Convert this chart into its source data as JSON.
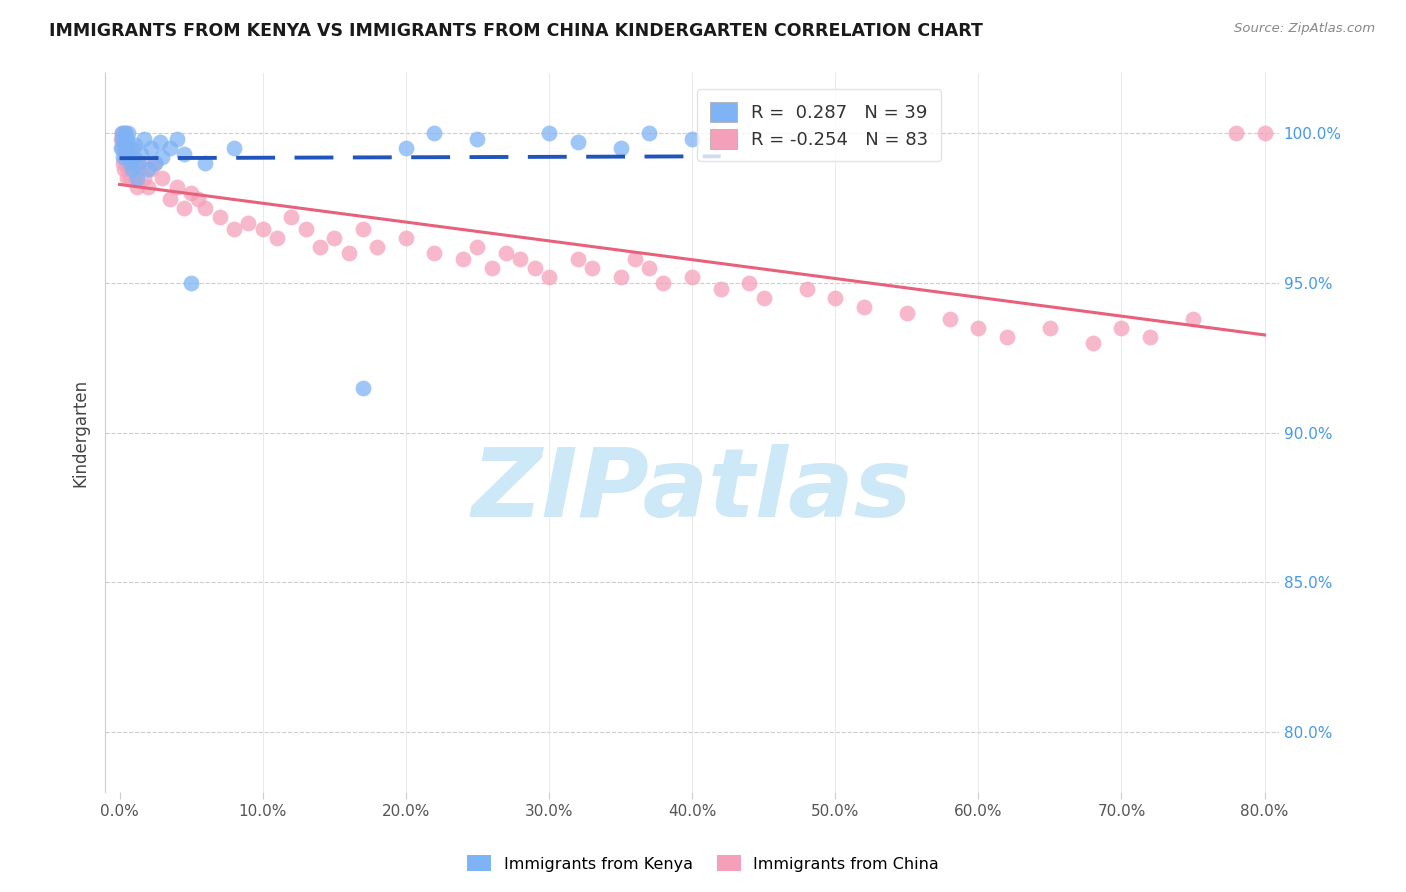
{
  "title": "IMMIGRANTS FROM KENYA VS IMMIGRANTS FROM CHINA KINDERGARTEN CORRELATION CHART",
  "source": "Source: ZipAtlas.com",
  "ylabel": "Kindergarten",
  "x_tick_labels": [
    "0.0%",
    "10.0%",
    "20.0%",
    "30.0%",
    "40.0%",
    "50.0%",
    "60.0%",
    "70.0%",
    "80.0%"
  ],
  "x_tick_values": [
    0,
    10,
    20,
    30,
    40,
    50,
    60,
    70,
    80
  ],
  "y_tick_labels": [
    "80.0%",
    "85.0%",
    "90.0%",
    "95.0%",
    "100.0%"
  ],
  "y_tick_values": [
    80,
    85,
    90,
    95,
    100
  ],
  "xlim": [
    -1,
    81
  ],
  "ylim": [
    78,
    102
  ],
  "kenya_color": "#7eb3f5",
  "china_color": "#f5a0bb",
  "kenya_line_color": "#2255bb",
  "china_line_color": "#e8607a",
  "watermark": "ZIPatlas",
  "watermark_color": "#cde8f7",
  "kenya_R": 0.287,
  "kenya_N": 39,
  "china_R": -0.254,
  "china_N": 83,
  "legend_kenya_label": "R =  0.287   N = 39",
  "legend_china_label": "R = -0.254   N = 83",
  "bottom_legend_kenya": "Immigrants from Kenya",
  "bottom_legend_china": "Immigrants from China"
}
